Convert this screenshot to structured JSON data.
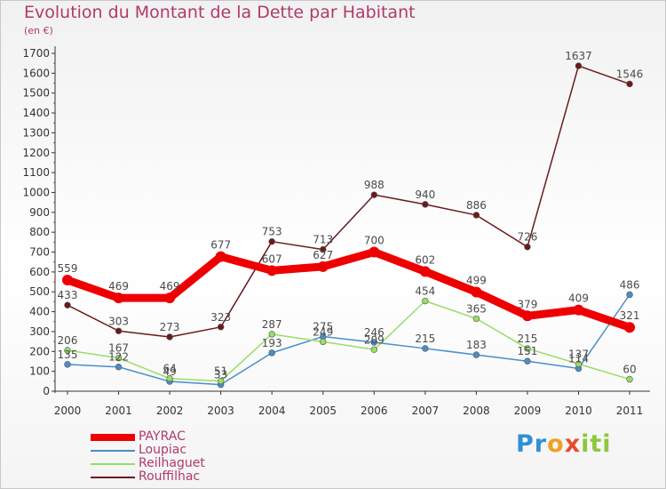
{
  "title": "Evolution du Montant de la Dette par Habitant",
  "subtitle": "(en €)",
  "brand": {
    "letters": [
      {
        "ch": "P",
        "color": "#2f8fd6"
      },
      {
        "ch": "r",
        "color": "#2f8fd6"
      },
      {
        "ch": "o",
        "color": "#f0a020"
      },
      {
        "ch": "x",
        "color": "#e64a2c"
      },
      {
        "ch": "i",
        "color": "#8cc83c"
      },
      {
        "ch": "t",
        "color": "#8cc83c"
      },
      {
        "ch": "i",
        "color": "#8cc83c"
      }
    ]
  },
  "chart_data": {
    "type": "line",
    "title": "Evolution du Montant de la Dette par Habitant",
    "subtitle": "(en €)",
    "x": [
      "2000",
      "2001",
      "2002",
      "2003",
      "2004",
      "2005",
      "2006",
      "2007",
      "2008",
      "2009",
      "2010",
      "2011"
    ],
    "ylim": [
      0,
      1700
    ],
    "yticks": [
      0,
      100,
      200,
      300,
      400,
      500,
      600,
      700,
      800,
      900,
      1000,
      1100,
      1200,
      1300,
      1400,
      1500,
      1600,
      1700
    ],
    "grid": false,
    "legend_position": "bottom-left",
    "series": [
      {
        "name": "PAYRAC",
        "color": "#ee0000",
        "values": [
          559,
          469,
          469,
          677,
          607,
          627,
          700,
          602,
          499,
          379,
          409,
          321
        ]
      },
      {
        "name": "Loupiac",
        "color": "#4a8ec8",
        "values": [
          135,
          122,
          49,
          33,
          193,
          275,
          246,
          215,
          183,
          151,
          114,
          486
        ]
      },
      {
        "name": "Reilhaguet",
        "color": "#99dd66",
        "values": [
          206,
          167,
          64,
          51,
          287,
          249,
          209,
          454,
          365,
          215,
          137,
          60
        ]
      },
      {
        "name": "Rouffilhac",
        "color": "#6b1a1a",
        "values": [
          433,
          303,
          273,
          323,
          753,
          713,
          988,
          940,
          886,
          726,
          1637,
          1546
        ]
      }
    ]
  }
}
